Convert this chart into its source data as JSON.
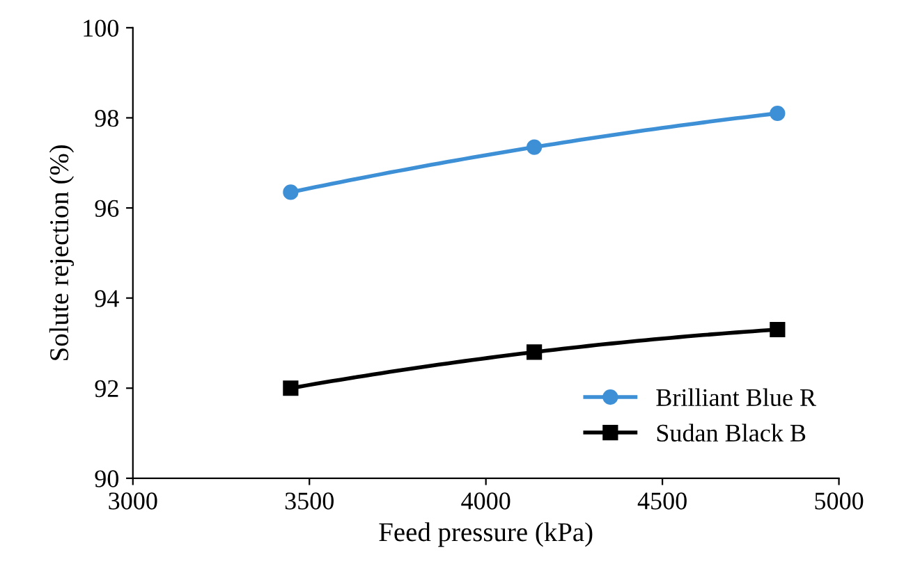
{
  "chart_data": {
    "type": "line",
    "xlabel": "Feed pressure (kPa)",
    "ylabel": "Solute rejection (%)",
    "x": [
      3447,
      4137,
      4826
    ],
    "series": [
      {
        "name": "Brilliant Blue R",
        "color": "#3d8fd6",
        "marker": "circle",
        "values": [
          96.35,
          97.35,
          98.1
        ]
      },
      {
        "name": "Sudan Black B",
        "color": "#000000",
        "marker": "square",
        "values": [
          92.0,
          92.8,
          93.3
        ]
      }
    ],
    "xlim": [
      3000,
      5000
    ],
    "xticks": [
      3000,
      3500,
      4000,
      4500,
      5000
    ],
    "ylim": [
      90,
      100
    ],
    "yticks": [
      90,
      92,
      94,
      96,
      98,
      100
    ],
    "grid": false,
    "legend": "bottom right",
    "line_style": "solid"
  }
}
